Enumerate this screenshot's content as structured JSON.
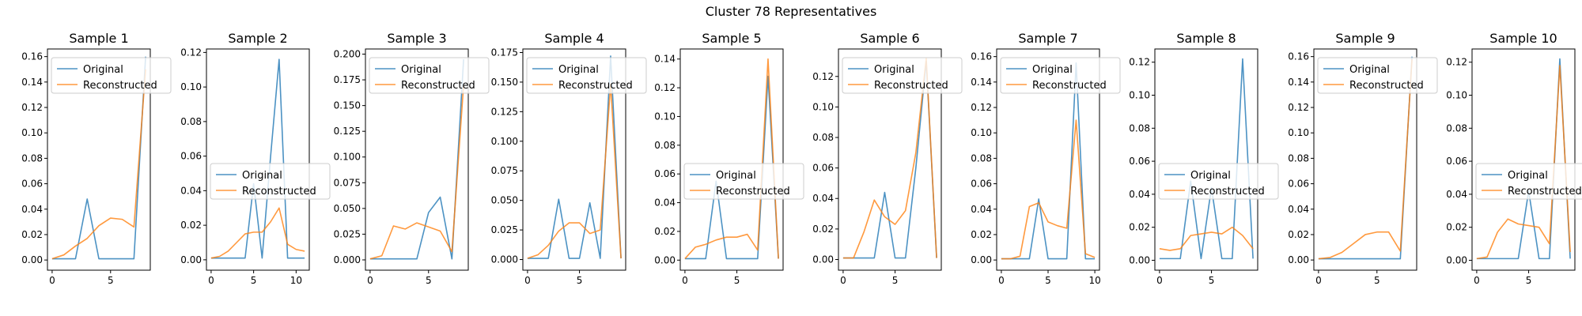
{
  "chart_data": {
    "suptitle": "Cluster 78 Representatives",
    "colors": {
      "original": "#1f77b4",
      "reconstructed": "#ff7f0e"
    },
    "legend_labels": [
      "Original",
      "Reconstructed"
    ],
    "panels": [
      {
        "type": "line",
        "title": "Sample 1",
        "legend": "upper-left",
        "xlim": [
          -0.4,
          8.4
        ],
        "ylim": [
          -0.008,
          0.166
        ],
        "xticks": [
          0,
          5
        ],
        "xtick_labels": [
          "0",
          "5"
        ],
        "yticks": [
          0,
          0.02,
          0.04,
          0.06,
          0.08,
          0.1,
          0.12,
          0.14,
          0.16
        ],
        "ytick_labels": [
          "0.00",
          "0.02",
          "0.04",
          "0.06",
          "0.08",
          "0.10",
          "0.12",
          "0.14",
          "0.16"
        ],
        "x": [
          0,
          1,
          2,
          3,
          4,
          5,
          6,
          7,
          8
        ],
        "series": [
          {
            "name": "Original",
            "values": [
              0.001,
              0.001,
              0.001,
              0.048,
              0.001,
              0.001,
              0.001,
              0.001,
              0.16
            ]
          },
          {
            "name": "Reconstructed",
            "values": [
              0.001,
              0.004,
              0.011,
              0.017,
              0.027,
              0.033,
              0.032,
              0.026,
              0.15
            ]
          }
        ]
      },
      {
        "type": "line",
        "title": "Sample 2",
        "legend": "center-left",
        "xlim": [
          -0.55,
          11.55
        ],
        "ylim": [
          -0.006,
          0.122
        ],
        "xticks": [
          0,
          5,
          10
        ],
        "xtick_labels": [
          "0",
          "5",
          "10"
        ],
        "yticks": [
          0,
          0.02,
          0.04,
          0.06,
          0.08,
          0.1,
          0.12
        ],
        "ytick_labels": [
          "0.00",
          "0.02",
          "0.04",
          "0.06",
          "0.08",
          "0.10",
          "0.12"
        ],
        "x": [
          0,
          1,
          2,
          3,
          4,
          5,
          6,
          7,
          8,
          9,
          10,
          11
        ],
        "series": [
          {
            "name": "Original",
            "values": [
              0.001,
              0.001,
              0.001,
              0.001,
              0.001,
              0.044,
              0.001,
              0.06,
              0.116,
              0.001,
              0.001,
              0.001
            ]
          },
          {
            "name": "Reconstructed",
            "values": [
              0.001,
              0.002,
              0.005,
              0.01,
              0.015,
              0.016,
              0.016,
              0.022,
              0.03,
              0.009,
              0.006,
              0.005
            ]
          }
        ]
      },
      {
        "type": "line",
        "title": "Sample 3",
        "legend": "upper-left",
        "xlim": [
          -0.4,
          8.4
        ],
        "ylim": [
          -0.01,
          0.205
        ],
        "xticks": [
          0,
          5
        ],
        "xtick_labels": [
          "0",
          "5"
        ],
        "yticks": [
          0,
          0.025,
          0.05,
          0.075,
          0.1,
          0.125,
          0.15,
          0.175,
          0.2
        ],
        "ytick_labels": [
          "0.000",
          "0.025",
          "0.050",
          "0.075",
          "0.100",
          "0.125",
          "0.150",
          "0.175",
          "0.200"
        ],
        "x": [
          0,
          1,
          2,
          3,
          4,
          5,
          6,
          7,
          8
        ],
        "series": [
          {
            "name": "Original",
            "values": [
              0.001,
              0.001,
              0.001,
              0.001,
              0.001,
              0.046,
              0.061,
              0.001,
              0.195
            ]
          },
          {
            "name": "Reconstructed",
            "values": [
              0.001,
              0.004,
              0.033,
              0.03,
              0.036,
              0.032,
              0.028,
              0.008,
              0.17
            ]
          }
        ]
      },
      {
        "type": "line",
        "title": "Sample 4",
        "legend": "upper-left",
        "xlim": [
          -0.45,
          9.45
        ],
        "ylim": [
          -0.009,
          0.178
        ],
        "xticks": [
          0,
          5
        ],
        "xtick_labels": [
          "0",
          "5"
        ],
        "yticks": [
          0,
          0.025,
          0.05,
          0.075,
          0.1,
          0.125,
          0.15,
          0.175
        ],
        "ytick_labels": [
          "0.000",
          "0.025",
          "0.050",
          "0.075",
          "0.100",
          "0.125",
          "0.150",
          "0.175"
        ],
        "x": [
          0,
          1,
          2,
          3,
          4,
          5,
          6,
          7,
          8,
          9
        ],
        "series": [
          {
            "name": "Original",
            "values": [
              0.001,
              0.001,
              0.001,
              0.051,
              0.001,
              0.001,
              0.048,
              0.001,
              0.172,
              0.001
            ]
          },
          {
            "name": "Reconstructed",
            "values": [
              0.001,
              0.004,
              0.012,
              0.024,
              0.031,
              0.031,
              0.022,
              0.025,
              0.148,
              0.001
            ]
          }
        ]
      },
      {
        "type": "line",
        "title": "Sample 5",
        "legend": "center-left",
        "xlim": [
          -0.45,
          9.45
        ],
        "ylim": [
          -0.007,
          0.147
        ],
        "xticks": [
          0,
          5
        ],
        "xtick_labels": [
          "0",
          "5"
        ],
        "yticks": [
          0,
          0.02,
          0.04,
          0.06,
          0.08,
          0.1,
          0.12,
          0.14
        ],
        "ytick_labels": [
          "0.00",
          "0.02",
          "0.04",
          "0.06",
          "0.08",
          "0.10",
          "0.12",
          "0.14"
        ],
        "x": [
          0,
          1,
          2,
          3,
          4,
          5,
          6,
          7,
          8,
          9
        ],
        "series": [
          {
            "name": "Original",
            "values": [
              0.001,
              0.001,
              0.001,
              0.055,
              0.001,
              0.001,
              0.001,
              0.001,
              0.128,
              0.001
            ]
          },
          {
            "name": "Reconstructed",
            "values": [
              0.001,
              0.009,
              0.011,
              0.014,
              0.016,
              0.016,
              0.018,
              0.007,
              0.14,
              0.001
            ]
          }
        ]
      },
      {
        "type": "line",
        "title": "Sample 6",
        "legend": "upper-left",
        "xlim": [
          -0.45,
          9.45
        ],
        "ylim": [
          -0.007,
          0.138
        ],
        "xticks": [
          0,
          5
        ],
        "xtick_labels": [
          "0",
          "5"
        ],
        "yticks": [
          0,
          0.02,
          0.04,
          0.06,
          0.08,
          0.1,
          0.12
        ],
        "ytick_labels": [
          "0.00",
          "0.02",
          "0.04",
          "0.06",
          "0.08",
          "0.10",
          "0.12"
        ],
        "x": [
          0,
          1,
          2,
          3,
          4,
          5,
          6,
          7,
          8,
          9
        ],
        "series": [
          {
            "name": "Original",
            "values": [
              0.001,
              0.001,
              0.001,
              0.001,
              0.044,
              0.001,
              0.001,
              0.06,
              0.13,
              0.001
            ]
          },
          {
            "name": "Reconstructed",
            "values": [
              0.001,
              0.001,
              0.018,
              0.039,
              0.028,
              0.023,
              0.032,
              0.07,
              0.132,
              0.001
            ]
          }
        ]
      },
      {
        "type": "line",
        "title": "Sample 7",
        "legend": "upper-left",
        "xlim": [
          -0.5,
          10.5
        ],
        "ylim": [
          -0.008,
          0.166
        ],
        "xticks": [
          0,
          5,
          10
        ],
        "xtick_labels": [
          "0",
          "5",
          "10"
        ],
        "yticks": [
          0,
          0.02,
          0.04,
          0.06,
          0.08,
          0.1,
          0.12,
          0.14,
          0.16
        ],
        "ytick_labels": [
          "0.00",
          "0.02",
          "0.04",
          "0.06",
          "0.08",
          "0.10",
          "0.12",
          "0.14",
          "0.16"
        ],
        "x": [
          0,
          1,
          2,
          3,
          4,
          5,
          6,
          7,
          8,
          9,
          10
        ],
        "series": [
          {
            "name": "Original",
            "values": [
              0.001,
              0.001,
              0.001,
              0.001,
              0.048,
              0.001,
              0.001,
              0.001,
              0.155,
              0.001,
              0.001
            ]
          },
          {
            "name": "Reconstructed",
            "values": [
              0.001,
              0.001,
              0.003,
              0.042,
              0.045,
              0.03,
              0.027,
              0.025,
              0.11,
              0.005,
              0.002
            ]
          }
        ]
      },
      {
        "type": "line",
        "title": "Sample 8",
        "legend": "center-left",
        "xlim": [
          -0.45,
          9.45
        ],
        "ylim": [
          -0.006,
          0.128
        ],
        "xticks": [
          0,
          5
        ],
        "xtick_labels": [
          "0",
          "5"
        ],
        "yticks": [
          0,
          0.02,
          0.04,
          0.06,
          0.08,
          0.1,
          0.12
        ],
        "ytick_labels": [
          "0.00",
          "0.02",
          "0.04",
          "0.06",
          "0.08",
          "0.10",
          "0.12"
        ],
        "x": [
          0,
          1,
          2,
          3,
          4,
          5,
          6,
          7,
          8,
          9
        ],
        "series": [
          {
            "name": "Original",
            "values": [
              0.001,
              0.001,
              0.001,
              0.048,
              0.001,
              0.044,
              0.001,
              0.001,
              0.122,
              0.001
            ]
          },
          {
            "name": "Reconstructed",
            "values": [
              0.007,
              0.006,
              0.007,
              0.015,
              0.016,
              0.017,
              0.016,
              0.02,
              0.015,
              0.007
            ]
          }
        ]
      },
      {
        "type": "line",
        "title": "Sample 9",
        "legend": "upper-left",
        "xlim": [
          -0.4,
          8.4
        ],
        "ylim": [
          -0.008,
          0.166
        ],
        "xticks": [
          0,
          5
        ],
        "xtick_labels": [
          "0",
          "5"
        ],
        "yticks": [
          0,
          0.02,
          0.04,
          0.06,
          0.08,
          0.1,
          0.12,
          0.14,
          0.16
        ],
        "ytick_labels": [
          "0.00",
          "0.02",
          "0.04",
          "0.06",
          "0.08",
          "0.10",
          "0.12",
          "0.14",
          "0.16"
        ],
        "x": [
          0,
          1,
          2,
          3,
          4,
          5,
          6,
          7,
          8
        ],
        "series": [
          {
            "name": "Original",
            "values": [
              0.001,
              0.001,
              0.001,
              0.001,
              0.001,
              0.001,
              0.001,
              0.001,
              0.16
            ]
          },
          {
            "name": "Reconstructed",
            "values": [
              0.001,
              0.002,
              0.006,
              0.013,
              0.02,
              0.022,
              0.022,
              0.007,
              0.158
            ]
          }
        ]
      },
      {
        "type": "line",
        "title": "Sample 10",
        "legend": "center-left",
        "xlim": [
          -0.45,
          9.45
        ],
        "ylim": [
          -0.006,
          0.128
        ],
        "xticks": [
          0,
          5
        ],
        "xtick_labels": [
          "0",
          "5"
        ],
        "yticks": [
          0,
          0.02,
          0.04,
          0.06,
          0.08,
          0.1,
          0.12
        ],
        "ytick_labels": [
          "0.00",
          "0.02",
          "0.04",
          "0.06",
          "0.08",
          "0.10",
          "0.12"
        ],
        "x": [
          0,
          1,
          2,
          3,
          4,
          5,
          6,
          7,
          8,
          9
        ],
        "series": [
          {
            "name": "Original",
            "values": [
              0.001,
              0.001,
              0.001,
              0.001,
              0.001,
              0.042,
              0.001,
              0.001,
              0.122,
              0.001
            ]
          },
          {
            "name": "Reconstructed",
            "values": [
              0.001,
              0.002,
              0.017,
              0.025,
              0.022,
              0.021,
              0.02,
              0.01,
              0.118,
              0.005
            ]
          }
        ]
      }
    ]
  }
}
